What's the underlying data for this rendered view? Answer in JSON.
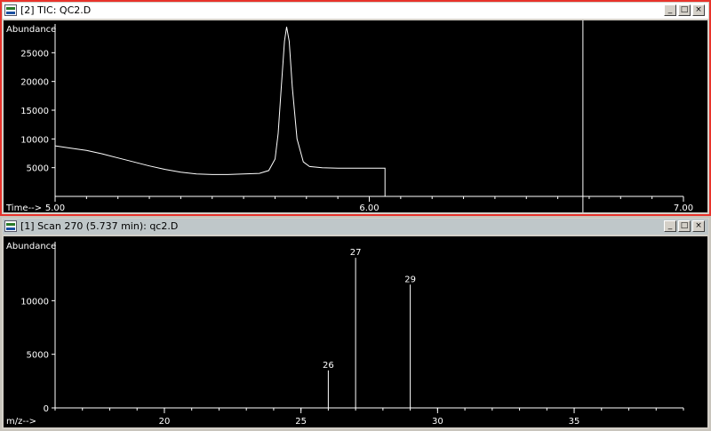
{
  "tic_window": {
    "title": "[2] TIC: QC2.D",
    "icon": "chromatogram-icon",
    "btn_minimize": "_",
    "btn_maximize": "□",
    "btn_close": "×",
    "chart_data": {
      "type": "line",
      "ylabel": "Abundance",
      "xlabel": "Time-->",
      "x_ticks": [
        "5.00",
        "6.00",
        "7.00"
      ],
      "y_ticks": [
        "5000",
        "10000",
        "15000",
        "20000",
        "25000"
      ],
      "xlim": [
        5.0,
        7.0
      ],
      "ylim": [
        0,
        30000
      ],
      "cursor_time": 6.68,
      "series": [
        {
          "x": [
            5.0,
            5.05,
            5.1,
            5.15,
            5.2,
            5.25,
            5.3,
            5.35,
            5.4,
            5.45,
            5.5,
            5.55,
            5.6,
            5.65,
            5.68,
            5.7,
            5.71,
            5.72,
            5.73,
            5.737,
            5.745,
            5.755,
            5.77,
            5.79,
            5.81,
            5.85,
            5.9,
            5.95,
            6.0,
            6.05
          ],
          "y": [
            8800,
            8400,
            8000,
            7400,
            6700,
            6000,
            5300,
            4700,
            4200,
            3900,
            3800,
            3800,
            3900,
            4000,
            4500,
            6500,
            11000,
            19000,
            27000,
            29500,
            27000,
            19000,
            10000,
            6000,
            5200,
            5000,
            4900,
            4900,
            4900,
            4900
          ]
        }
      ]
    }
  },
  "scan_window": {
    "title": "[1] Scan 270 (5.737 min): qc2.D",
    "icon": "spectrum-icon",
    "btn_minimize": "_",
    "btn_maximize": "□",
    "btn_close": "×",
    "chart_data": {
      "type": "bar",
      "ylabel": "Abundance",
      "xlabel": "m/z-->",
      "x_ticks": [
        "20",
        "25",
        "30",
        "35"
      ],
      "y_ticks": [
        "0",
        "5000",
        "10000"
      ],
      "xlim": [
        16,
        39
      ],
      "ylim": [
        0,
        15500
      ],
      "peaks": [
        {
          "mz": 26,
          "abundance": 3500,
          "label": "26"
        },
        {
          "mz": 27,
          "abundance": 14000,
          "label": "27"
        },
        {
          "mz": 29,
          "abundance": 11500,
          "label": "29"
        }
      ]
    }
  }
}
